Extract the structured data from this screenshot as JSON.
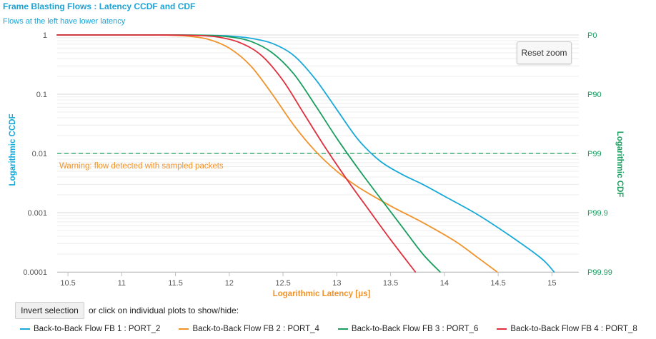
{
  "page": {
    "invert_label": "Invert selection",
    "invert_hint": "or click on individual plots to show/hide:",
    "reset_zoom_label": "Reset zoom"
  },
  "chart_data": {
    "type": "line",
    "title": "Frame Blasting Flows : Latency CCDF and CDF",
    "subtitle": "Flows at the left have lower latency",
    "xlabel": "Logarithmic Latency [μs]",
    "ylabel_left": "Logarithmic CCDF",
    "ylabel_right": "Logarithmic CDF",
    "xlim": [
      10.4,
      15.25
    ],
    "ylim": [
      0.0001,
      1
    ],
    "yscale": "log",
    "x_ticks": [
      "10.5",
      "11",
      "11.5",
      "12",
      "12.5",
      "13",
      "13.5",
      "14",
      "14.5",
      "15"
    ],
    "y_ticks_left": [
      {
        "value": 1,
        "label": "1"
      },
      {
        "value": 0.1,
        "label": "0.1"
      },
      {
        "value": 0.01,
        "label": "0.01"
      },
      {
        "value": 0.001,
        "label": "0.001"
      },
      {
        "value": 0.0001,
        "label": "0.0001"
      }
    ],
    "y_ticks_right": [
      {
        "value": 1,
        "label": "P0"
      },
      {
        "value": 0.1,
        "label": "P90"
      },
      {
        "value": 0.01,
        "label": "P99"
      },
      {
        "value": 0.001,
        "label": "P99.9"
      },
      {
        "value": 0.0001,
        "label": "P99.99"
      }
    ],
    "reference_line": {
      "value": 0.01,
      "color": "#1a9e5f"
    },
    "annotation": {
      "text": "Warning: flow detected with sampled packets",
      "color": "#f0932b"
    },
    "legend_position": "bottom",
    "grid": "horizontal minor",
    "series": [
      {
        "name": "Back-to-Back Flow FB 1 : PORT_2",
        "color": "#19a9d8",
        "x": [
          10.4,
          11.0,
          11.5,
          11.8,
          12.0,
          12.2,
          12.4,
          12.6,
          12.8,
          13.0,
          13.2,
          13.4,
          13.6,
          13.8,
          14.0,
          14.3,
          14.6,
          14.9,
          15.02
        ],
        "y": [
          1,
          1,
          0.999,
          0.985,
          0.96,
          0.88,
          0.72,
          0.45,
          0.18,
          0.055,
          0.017,
          0.0075,
          0.0045,
          0.003,
          0.0019,
          0.00095,
          0.00042,
          0.00017,
          0.0001
        ]
      },
      {
        "name": "Back-to-Back Flow FB 2 : PORT_4",
        "color": "#f0932b",
        "x": [
          10.4,
          11.0,
          11.4,
          11.6,
          11.8,
          12.0,
          12.2,
          12.4,
          12.6,
          12.8,
          13.0,
          13.2,
          13.5,
          13.8,
          14.1,
          14.3,
          14.49
        ],
        "y": [
          1,
          1,
          0.995,
          0.96,
          0.85,
          0.6,
          0.3,
          0.1,
          0.03,
          0.011,
          0.005,
          0.0027,
          0.0013,
          0.00068,
          0.00033,
          0.00018,
          0.0001
        ]
      },
      {
        "name": "Back-to-Back Flow FB 3 : PORT_6",
        "color": "#1a9e5f",
        "x": [
          10.4,
          11.0,
          11.5,
          11.8,
          12.0,
          12.2,
          12.4,
          12.6,
          12.8,
          13.0,
          13.2,
          13.4,
          13.6,
          13.8,
          13.96
        ],
        "y": [
          1,
          1,
          0.999,
          0.985,
          0.93,
          0.78,
          0.5,
          0.22,
          0.065,
          0.018,
          0.0055,
          0.0018,
          0.0006,
          0.0002,
          0.0001
        ]
      },
      {
        "name": "Back-to-Back Flow FB 4 : PORT_8",
        "color": "#e02e3c",
        "x": [
          10.4,
          11.0,
          11.4,
          11.7,
          11.9,
          12.1,
          12.3,
          12.5,
          12.7,
          12.9,
          13.1,
          13.3,
          13.5,
          13.73
        ],
        "y": [
          1,
          1,
          0.999,
          0.98,
          0.92,
          0.74,
          0.45,
          0.17,
          0.045,
          0.012,
          0.0035,
          0.0011,
          0.00035,
          0.0001
        ]
      }
    ]
  }
}
